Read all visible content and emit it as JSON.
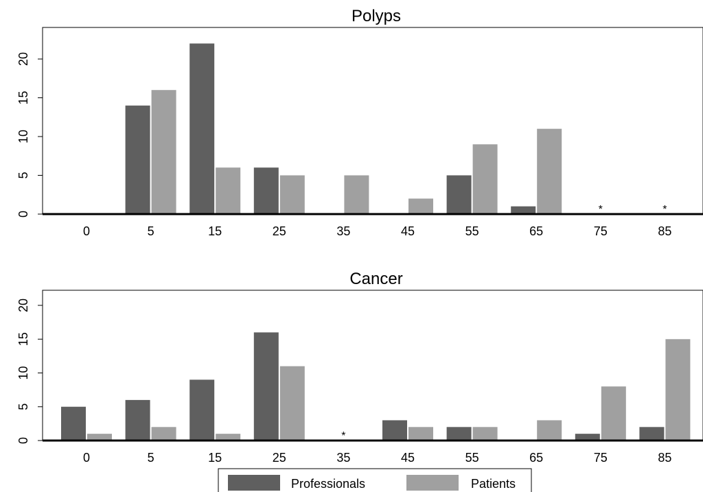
{
  "chart_data": [
    {
      "type": "bar",
      "title": "Polyps",
      "categories": [
        "0",
        "5",
        "15",
        "25",
        "35",
        "45",
        "55",
        "65",
        "75",
        "85"
      ],
      "series": [
        {
          "name": "Professionals",
          "values": [
            0,
            14,
            22,
            6,
            0,
            0,
            5,
            1,
            0,
            0
          ]
        },
        {
          "name": "Patients",
          "values": [
            0,
            16,
            6,
            5,
            5,
            2,
            9,
            11,
            0,
            0
          ]
        }
      ],
      "annotations": [
        {
          "category": "75",
          "text": "*"
        },
        {
          "category": "85",
          "text": "*"
        }
      ],
      "yticks": [
        "0",
        "5",
        "10",
        "15",
        "20"
      ],
      "ylim": [
        0,
        24.5
      ],
      "xlabel": "",
      "ylabel": "",
      "grid": false
    },
    {
      "type": "bar",
      "title": "Cancer",
      "categories": [
        "0",
        "5",
        "15",
        "25",
        "35",
        "45",
        "55",
        "65",
        "75",
        "85"
      ],
      "series": [
        {
          "name": "Professionals",
          "values": [
            5,
            6,
            9,
            16,
            0,
            3,
            2,
            0,
            1,
            2
          ]
        },
        {
          "name": "Patients",
          "values": [
            1,
            2,
            1,
            11,
            0,
            2,
            2,
            3,
            8,
            15
          ]
        }
      ],
      "annotations": [
        {
          "category": "35",
          "text": "*"
        }
      ],
      "yticks": [
        "0",
        "5",
        "10",
        "15",
        "20"
      ],
      "ylim": [
        0,
        20.5
      ],
      "xlabel": "",
      "ylabel": "",
      "grid": false
    }
  ],
  "legend": {
    "position": "bottom-center",
    "items": [
      {
        "label": "Professionals",
        "color": "#5f5f5f"
      },
      {
        "label": "Patients",
        "color": "#a0a0a0"
      }
    ]
  },
  "colors": {
    "professionals": "#5f5f5f",
    "patients": "#a0a0a0",
    "axis": "#000000"
  }
}
